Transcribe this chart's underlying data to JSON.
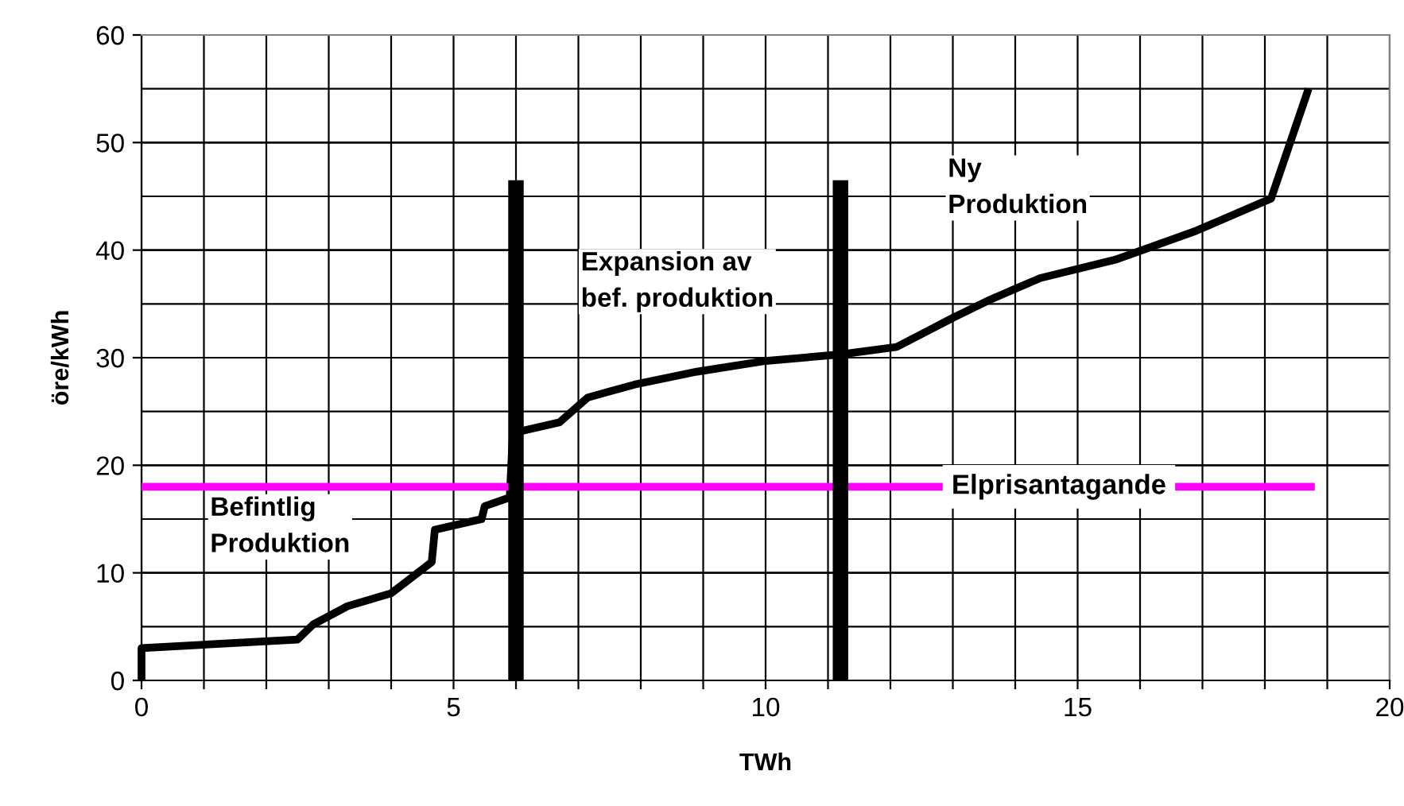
{
  "chart_data": {
    "type": "line",
    "xlabel": "TWh",
    "ylabel": "öre/kWh",
    "xlim": [
      0,
      20
    ],
    "ylim": [
      0,
      60
    ],
    "xticks": [
      {
        "value": 0,
        "label": "0"
      },
      {
        "value": 1,
        "label": null
      },
      {
        "value": 2,
        "label": null
      },
      {
        "value": 3,
        "label": null
      },
      {
        "value": 4,
        "label": null
      },
      {
        "value": 5,
        "label": "5"
      },
      {
        "value": 6,
        "label": null
      },
      {
        "value": 7,
        "label": null
      },
      {
        "value": 8,
        "label": null
      },
      {
        "value": 9,
        "label": null
      },
      {
        "value": 10,
        "label": "10"
      },
      {
        "value": 11,
        "label": null
      },
      {
        "value": 12,
        "label": null
      },
      {
        "value": 13,
        "label": null
      },
      {
        "value": 14,
        "label": null
      },
      {
        "value": 15,
        "label": "15"
      },
      {
        "value": 16,
        "label": null
      },
      {
        "value": 17,
        "label": null
      },
      {
        "value": 18,
        "label": null
      },
      {
        "value": 19,
        "label": null
      },
      {
        "value": 20,
        "label": "20"
      }
    ],
    "yticks": [
      0,
      10,
      20,
      30,
      40,
      50,
      60
    ],
    "grid": true,
    "legend": false,
    "marker": "none",
    "line_style": "solid",
    "series": [
      {
        "color": "#000000",
        "x": [
          0,
          0,
          2.5,
          2.75,
          3.3,
          4.0,
          4.65,
          4.7,
          5.45,
          5.5,
          5.9,
          5.95,
          6.7,
          7.15,
          7.9,
          8.9,
          10.0,
          11.2,
          12.1,
          12.5,
          13.0,
          13.6,
          14.4,
          15.6,
          16.9,
          18.1,
          18.7
        ],
        "values": [
          0,
          3,
          3.8,
          5.2,
          6.9,
          8.1,
          11,
          14,
          15,
          16.2,
          17,
          23,
          24,
          26.3,
          27.5,
          28.7,
          29.7,
          30.3,
          31,
          32.2,
          33.7,
          35.4,
          37.4,
          39.1,
          41.8,
          44.8,
          55
        ]
      },
      {
        "color": "#ff00ff",
        "x": [
          0,
          18.8
        ],
        "values": [
          18,
          18
        ]
      },
      {
        "color": "#000000",
        "x": [
          6,
          6
        ],
        "values": [
          0,
          46.5
        ]
      },
      {
        "color": "#000000",
        "x": [
          11.2,
          11.2
        ],
        "values": [
          0,
          46.5
        ]
      }
    ],
    "annotations": [
      "Befintlig\nProduktion",
      "Expansion av\nbef. produktion",
      "Ny\nProduktion",
      {
        "text": "Elprisantagande",
        "x": 14.7,
        "y": 18
      }
    ]
  }
}
